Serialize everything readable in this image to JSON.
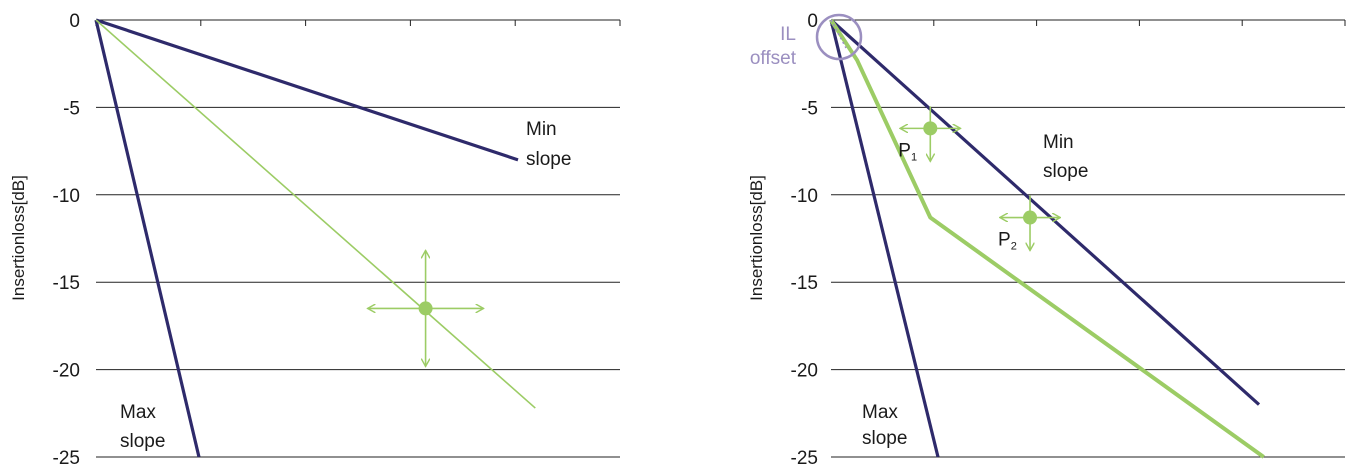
{
  "colors": {
    "navy": "#2e2a6b",
    "green": "#9ccc65",
    "grid": "#222222",
    "il": "#9b8fc0"
  },
  "chart_data": [
    {
      "type": "line",
      "ylabel": "Insertionloss[dB]",
      "ylim": [
        -25,
        0
      ],
      "yticks": [
        "0",
        "-5",
        "-10",
        "-15",
        "-20",
        "-25"
      ],
      "grid": true,
      "series": [
        {
          "name": "Min slope",
          "points": [
            [
              0,
              0
            ],
            [
              1,
              -8
            ]
          ]
        },
        {
          "name": "Max slope",
          "points": [
            [
              0,
              0
            ],
            [
              0.244,
              -25
            ]
          ]
        },
        {
          "points": [
            [
              0,
              0
            ],
            [
              1.041,
              -22.2
            ]
          ]
        }
      ],
      "control_point": [
        0.781,
        -16.5
      ],
      "annotations": [
        {
          "text": "Min",
          "text2": "slope"
        },
        {
          "text": "Max",
          "text2": "slope"
        }
      ]
    },
    {
      "type": "line",
      "ylabel": "Insertionloss[dB]",
      "ylim": [
        -25,
        0
      ],
      "yticks": [
        "0",
        "-5",
        "-10",
        "-15",
        "-20",
        "-25"
      ],
      "grid": true,
      "series": [
        {
          "name": "Min slope",
          "points": [
            [
              0,
              0
            ],
            [
              1,
              -22
            ]
          ]
        },
        {
          "name": "Max slope",
          "points": [
            [
              0,
              0
            ],
            [
              0.25,
              -25
            ]
          ]
        },
        {
          "points": [
            [
              0,
              0
            ],
            [
              0.061,
              -2.3
            ],
            [
              0.232,
              -11.3
            ],
            [
              1.011,
              -25
            ]
          ]
        }
      ],
      "control_points": [
        {
          "label": "P",
          "sub": "1",
          "x": 0.232,
          "y": -6.2
        },
        {
          "label": "P",
          "sub": "2",
          "x": 0.465,
          "y": -11.3
        }
      ],
      "il_offset": {
        "line1": "IL",
        "line2": "offset"
      },
      "annotations": [
        {
          "text": "Min",
          "text2": "slope"
        },
        {
          "text": "Max",
          "text2": "slope"
        }
      ]
    }
  ]
}
